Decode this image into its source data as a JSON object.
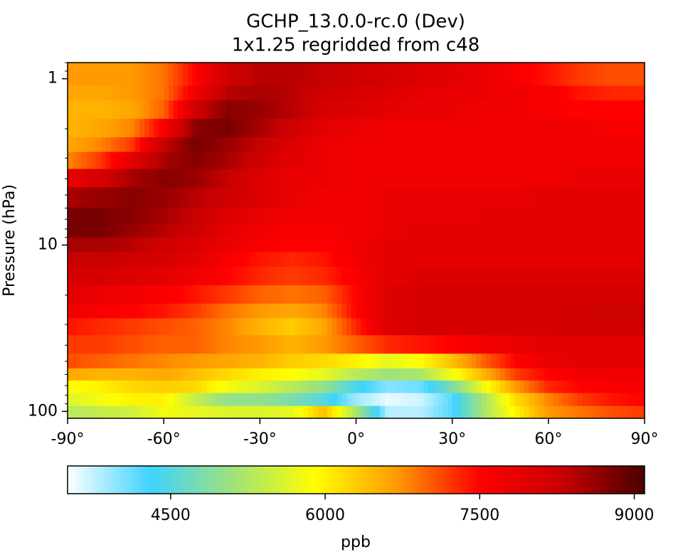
{
  "chart_data": {
    "type": "heatmap",
    "title": "GCHP_13.0.0-rc.0 (Dev)",
    "subtitle": "1x1.25 regridded from c48",
    "xlabel": "",
    "ylabel": "Pressure (hPa)",
    "x_range": [
      -90,
      90
    ],
    "y_range_hpa": [
      0.8,
      110
    ],
    "y_scale": "log",
    "x_ticks": [
      {
        "value": -90,
        "label": "-90°"
      },
      {
        "value": -60,
        "label": "-60°"
      },
      {
        "value": -30,
        "label": "-30°"
      },
      {
        "value": 0,
        "label": "0°"
      },
      {
        "value": 30,
        "label": "30°"
      },
      {
        "value": 60,
        "label": "60°"
      },
      {
        "value": 90,
        "label": "90°"
      }
    ],
    "y_ticks": [
      {
        "value": 1,
        "label": "1"
      },
      {
        "value": 10,
        "label": "10"
      },
      {
        "value": 100,
        "label": "100"
      }
    ],
    "colorbar": {
      "label": "ppb",
      "range": [
        3500,
        9100
      ],
      "ticks": [
        {
          "value": 4500,
          "label": "4500"
        },
        {
          "value": 6000,
          "label": "6000"
        },
        {
          "value": 7500,
          "label": "7500"
        },
        {
          "value": 9000,
          "label": "9000"
        }
      ],
      "colormap": [
        "#ffffff",
        "#3fd3ff",
        "#9fe27a",
        "#ffff00",
        "#ff9a00",
        "#ff0000",
        "#c80000",
        "#4a0000"
      ]
    },
    "grid": false,
    "levels_hpa": [
      100,
      85,
      70,
      60,
      50,
      40,
      30,
      25,
      20,
      15,
      12,
      10,
      8,
      7,
      5,
      4,
      3,
      2.5,
      2,
      1.5,
      1.2,
      1
    ],
    "latitudes": [
      -90,
      -80,
      -70,
      -60,
      -50,
      -40,
      -30,
      -20,
      -10,
      0,
      10,
      20,
      30,
      40,
      50,
      60,
      70,
      80,
      90
    ],
    "values_ppb": [
      [
        5300,
        5400,
        5500,
        5800,
        5700,
        5600,
        5600,
        5700,
        6400,
        5200,
        3800,
        3800,
        4200,
        5200,
        6000,
        6700,
        6900,
        7100,
        7200
      ],
      [
        5600,
        5800,
        6000,
        6000,
        5400,
        5000,
        5000,
        4800,
        4500,
        3900,
        3600,
        3700,
        4200,
        5200,
        6200,
        6800,
        7200,
        7400,
        7500
      ],
      [
        5900,
        6000,
        6200,
        6300,
        6200,
        5800,
        5600,
        5300,
        5000,
        4400,
        4000,
        4100,
        4800,
        5800,
        6700,
        7300,
        7500,
        7600,
        7600
      ],
      [
        6600,
        6500,
        6500,
        6600,
        6400,
        6200,
        6000,
        5900,
        5700,
        5300,
        5100,
        5200,
        5800,
        6500,
        7200,
        7500,
        7700,
        7700,
        7700
      ],
      [
        7100,
        7000,
        6900,
        6800,
        6700,
        6600,
        6500,
        6300,
        6200,
        6000,
        5700,
        5900,
        6400,
        7000,
        7500,
        7800,
        7900,
        7900,
        7900
      ],
      [
        7200,
        7200,
        7100,
        7000,
        7000,
        6800,
        6700,
        6500,
        6700,
        7000,
        7300,
        7400,
        7500,
        7700,
        7800,
        7900,
        7900,
        7900,
        7900
      ],
      [
        7400,
        7300,
        7200,
        7100,
        7000,
        6800,
        6500,
        6300,
        6600,
        7300,
        8000,
        8100,
        8100,
        8100,
        8100,
        8100,
        8200,
        8200,
        8200
      ],
      [
        7700,
        7600,
        7500,
        7400,
        7200,
        6900,
        6700,
        6600,
        6800,
        7500,
        8000,
        8100,
        8100,
        8100,
        8100,
        8100,
        8200,
        8200,
        8200
      ],
      [
        7900,
        7800,
        7700,
        7600,
        7400,
        7200,
        7000,
        6900,
        7000,
        7500,
        8000,
        8100,
        8100,
        8100,
        8100,
        8100,
        8100,
        8100,
        8100
      ],
      [
        8100,
        8100,
        8000,
        7900,
        7700,
        7500,
        7300,
        7200,
        7300,
        7600,
        7900,
        8000,
        8000,
        8000,
        8000,
        8000,
        8000,
        8000,
        8000
      ],
      [
        8300,
        8300,
        8200,
        8100,
        7900,
        7600,
        7400,
        7300,
        7400,
        7700,
        7900,
        7900,
        7900,
        7900,
        7900,
        7900,
        7900,
        7900,
        7900
      ],
      [
        8500,
        8500,
        8400,
        8200,
        8000,
        7800,
        7600,
        7500,
        7500,
        7700,
        7900,
        7900,
        7900,
        7900,
        7900,
        7900,
        7900,
        7900,
        7900
      ],
      [
        8800,
        8800,
        8600,
        8400,
        8200,
        7900,
        7700,
        7600,
        7600,
        7700,
        7800,
        7900,
        7900,
        7900,
        7900,
        7900,
        7900,
        7900,
        7900
      ],
      [
        8800,
        8800,
        8700,
        8500,
        8300,
        8000,
        7800,
        7700,
        7700,
        7700,
        7800,
        7800,
        7800,
        7900,
        7900,
        7900,
        7900,
        7900,
        7900
      ],
      [
        8500,
        8600,
        8700,
        8600,
        8400,
        8200,
        8000,
        7800,
        7700,
        7700,
        7800,
        7800,
        7800,
        7800,
        7800,
        7900,
        7900,
        7900,
        7900
      ],
      [
        7800,
        8100,
        8500,
        8700,
        8600,
        8300,
        8000,
        7800,
        7800,
        7700,
        7700,
        7700,
        7700,
        7700,
        7700,
        7700,
        7800,
        7800,
        7800
      ],
      [
        6800,
        7200,
        7900,
        8500,
        8700,
        8500,
        8200,
        7900,
        7800,
        7700,
        7700,
        7700,
        7700,
        7700,
        7700,
        7700,
        7700,
        7700,
        7700
      ],
      [
        6600,
        6800,
        7200,
        8300,
        8800,
        8600,
        8300,
        8000,
        7800,
        7700,
        7700,
        7700,
        7700,
        7700,
        7700,
        7700,
        7700,
        7700,
        7700
      ],
      [
        6500,
        6600,
        6800,
        7600,
        8700,
        8800,
        8500,
        8200,
        7900,
        7800,
        7700,
        7700,
        7700,
        7700,
        7700,
        7700,
        7700,
        7600,
        7600
      ],
      [
        6500,
        6500,
        6600,
        7000,
        8200,
        8700,
        8600,
        8400,
        8100,
        8000,
        7900,
        7800,
        7800,
        7700,
        7700,
        7600,
        7500,
        7500,
        7500
      ],
      [
        6600,
        6600,
        6700,
        6900,
        7700,
        8400,
        8500,
        8400,
        8200,
        8100,
        8000,
        7900,
        7800,
        7800,
        7700,
        7600,
        7400,
        7300,
        7300
      ],
      [
        6700,
        6700,
        6700,
        6900,
        7500,
        8200,
        8400,
        8400,
        8300,
        8200,
        8100,
        8000,
        7900,
        7800,
        7600,
        7400,
        7200,
        7100,
        7100
      ]
    ]
  }
}
